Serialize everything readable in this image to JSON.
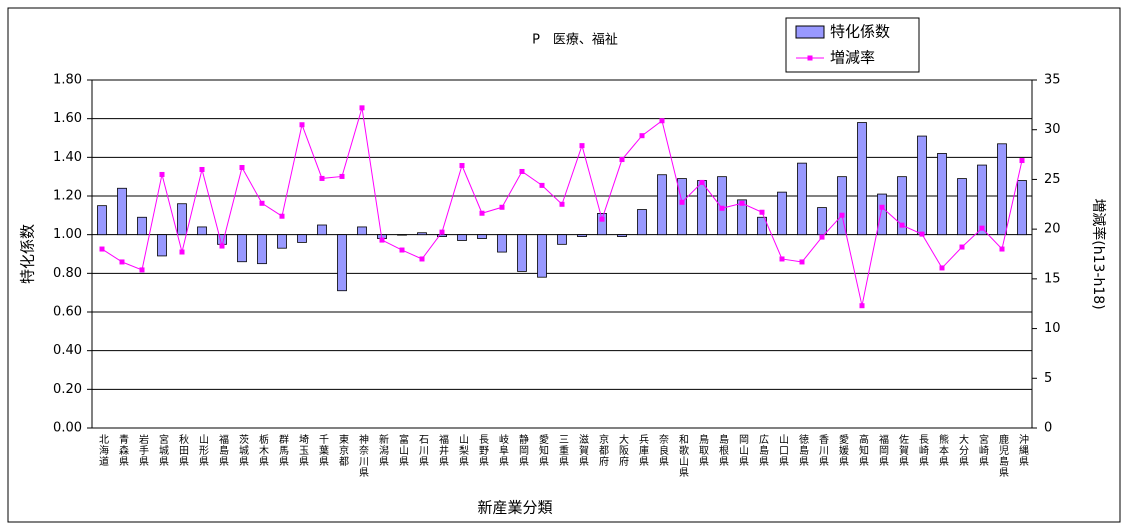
{
  "chart_data": {
    "type": "bar_line",
    "title": "P　医療、福祉",
    "x_label": "新産業分類",
    "y_label": "特化係数",
    "y2_label": "増減率(h13-h18)",
    "categories": [
      "北海道",
      "青森県",
      "岩手県",
      "宮城県",
      "秋田県",
      "山形県",
      "福島県",
      "茨城県",
      "栃木県",
      "群馬県",
      "埼玉県",
      "千葉県",
      "東京都",
      "神奈川県",
      "新潟県",
      "富山県",
      "石川県",
      "福井県",
      "山梨県",
      "長野県",
      "岐阜県",
      "静岡県",
      "愛知県",
      "三重県",
      "滋賀県",
      "京都府",
      "大阪府",
      "兵庫県",
      "奈良県",
      "和歌山県",
      "鳥取県",
      "島根県",
      "岡山県",
      "広島県",
      "山口県",
      "徳島県",
      "香川県",
      "愛媛県",
      "高知県",
      "福岡県",
      "佐賀県",
      "長崎県",
      "熊本県",
      "大分県",
      "宮崎県",
      "鹿児島県",
      "沖縄県"
    ],
    "series": [
      {
        "name": "特化係数",
        "color": "#9999ff",
        "kind": "bar",
        "baseline": 1.0,
        "values": [
          1.15,
          1.24,
          1.09,
          0.89,
          1.16,
          1.04,
          0.95,
          0.86,
          0.85,
          0.93,
          0.96,
          1.05,
          0.71,
          1.04,
          0.98,
          1.0,
          1.01,
          0.99,
          0.97,
          0.98,
          0.91,
          0.81,
          0.78,
          0.95,
          0.99,
          1.11,
          0.99,
          1.13,
          1.31,
          1.29,
          1.28,
          1.3,
          1.18,
          1.09,
          1.22,
          1.37,
          1.14,
          1.3,
          1.58,
          1.21,
          1.3,
          1.51,
          1.42,
          1.29,
          1.36,
          1.47,
          1.28
        ]
      },
      {
        "name": "増減率",
        "color": "#ff00ff",
        "kind": "line",
        "axis": "y2",
        "values": [
          18.0,
          16.7,
          15.9,
          25.5,
          17.7,
          26.0,
          18.3,
          26.2,
          22.6,
          21.3,
          30.5,
          25.1,
          25.3,
          32.2,
          18.9,
          17.9,
          17.0,
          19.7,
          26.4,
          21.6,
          22.2,
          25.8,
          24.4,
          22.5,
          28.4,
          21.0,
          27.0,
          29.4,
          30.9,
          22.7,
          24.7,
          22.1,
          22.6,
          21.7,
          17.0,
          16.7,
          19.2,
          21.4,
          12.3,
          22.2,
          20.4,
          19.5,
          16.1,
          18.2,
          20.1,
          18.0,
          26.9
        ]
      }
    ],
    "ylim": [
      0,
      1.8
    ],
    "yticks": [
      {
        "value": 0,
        "label": "0.00"
      },
      {
        "value": 0.2,
        "label": "0.20"
      },
      {
        "value": 0.4,
        "label": "0.40"
      },
      {
        "value": 0.6,
        "label": "0.60"
      },
      {
        "value": 0.8,
        "label": "0.80"
      },
      {
        "value": 1,
        "label": "1.00"
      },
      {
        "value": 1.2,
        "label": "1.20"
      },
      {
        "value": 1.4,
        "label": "1.40"
      },
      {
        "value": 1.6,
        "label": "1.60"
      },
      {
        "value": 1.8,
        "label": "1.80"
      }
    ],
    "y2lim": [
      0,
      35
    ],
    "y2ticks": [
      0,
      5,
      10,
      15,
      20,
      25,
      30,
      35
    ],
    "grid": true
  }
}
